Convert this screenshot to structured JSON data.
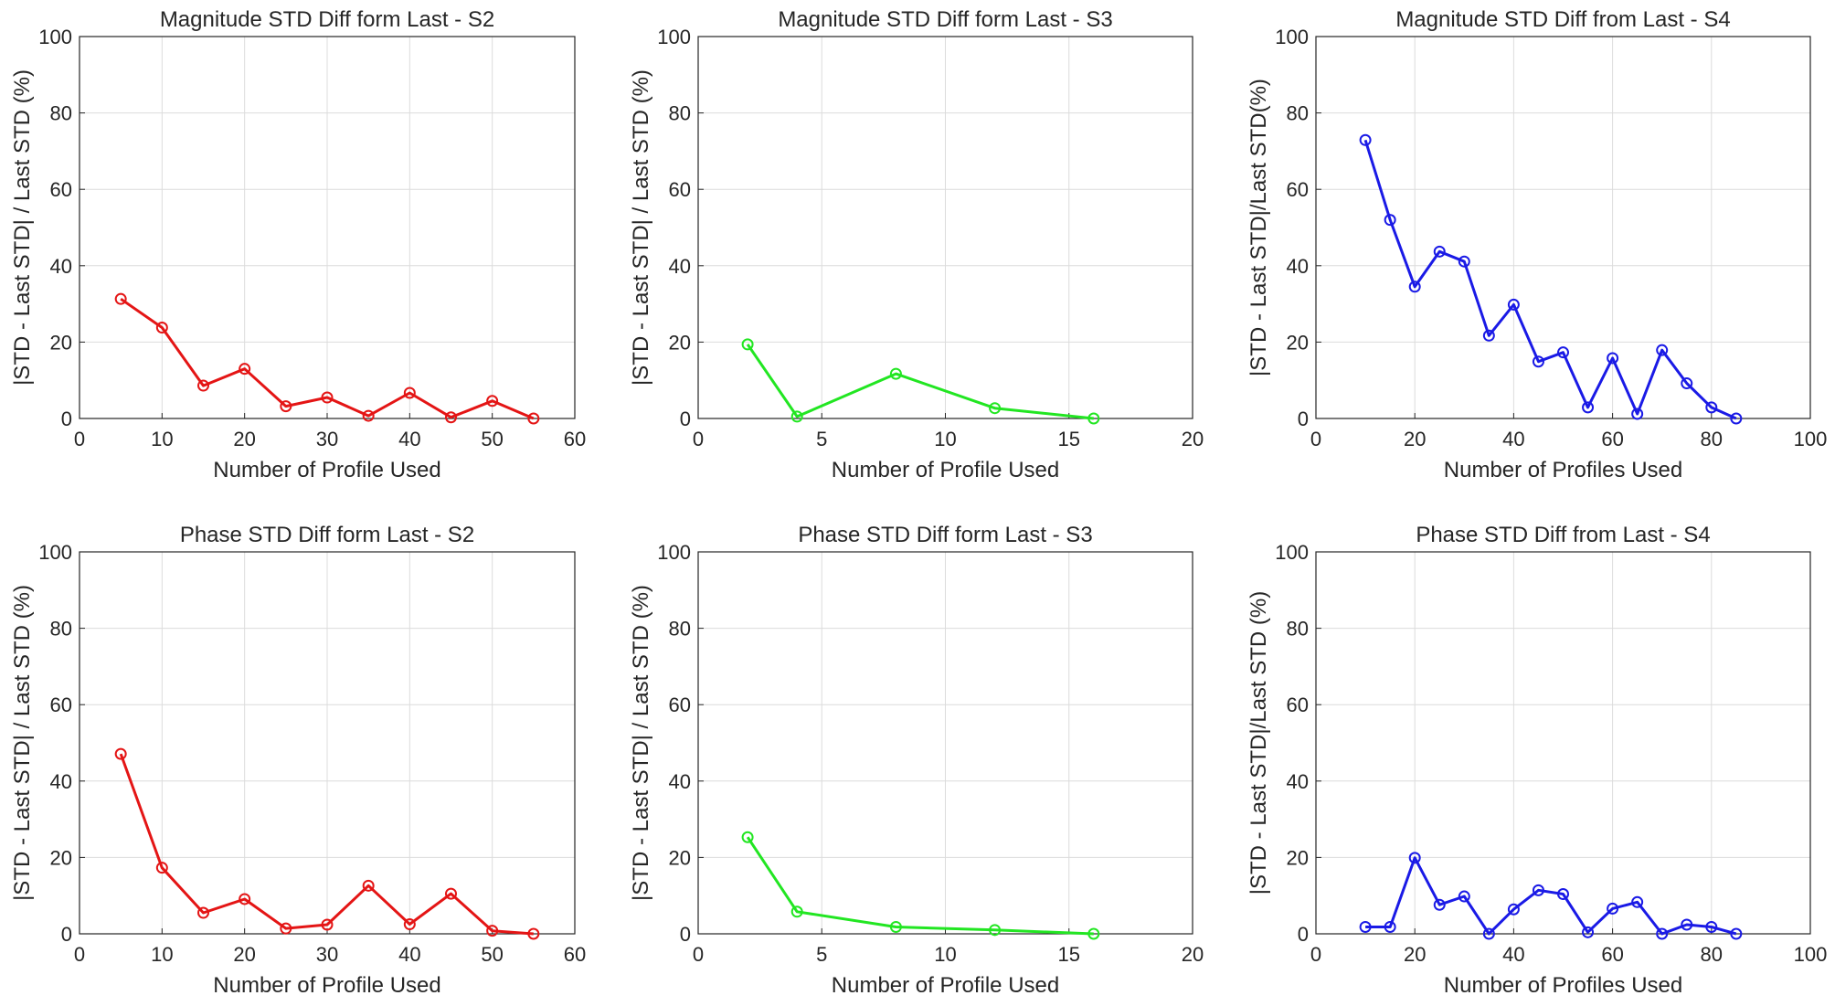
{
  "chart_data": [
    {
      "type": "line",
      "title": "Magnitude STD Diff form Last - S2",
      "xlabel": "Number of Profile Used",
      "ylabel": "|STD - Last STD| / Last STD (%)",
      "xlim": [
        0,
        60
      ],
      "ylim": [
        0,
        100
      ],
      "xticks": [
        0,
        10,
        20,
        30,
        40,
        50,
        60
      ],
      "yticks": [
        0,
        20,
        40,
        60,
        80,
        100
      ],
      "color": "#e41515",
      "marker": "circle",
      "x": [
        5,
        10,
        15,
        20,
        25,
        30,
        35,
        40,
        45,
        50,
        55
      ],
      "y": [
        31.3,
        23.8,
        8.6,
        13.0,
        3.2,
        5.5,
        0.7,
        6.7,
        0.3,
        4.6,
        0.0
      ]
    },
    {
      "type": "line",
      "title": "Magnitude STD Diff form Last - S3",
      "xlabel": "Number of Profile Used",
      "ylabel": "|STD - Last STD| / Last STD (%)",
      "xlim": [
        0,
        20
      ],
      "ylim": [
        0,
        100
      ],
      "xticks": [
        0,
        5,
        10,
        15,
        20
      ],
      "yticks": [
        0,
        20,
        40,
        60,
        80,
        100
      ],
      "color": "#22e622",
      "marker": "circle",
      "x": [
        2,
        4,
        8,
        12,
        16
      ],
      "y": [
        19.4,
        0.5,
        11.7,
        2.7,
        0.0
      ]
    },
    {
      "type": "line",
      "title": "Magnitude STD Diff from Last - S4",
      "xlabel": "Number of Profiles Used",
      "ylabel": "|STD - Last STD|/Last STD(%)",
      "xlim": [
        0,
        100
      ],
      "ylim": [
        0,
        100
      ],
      "xticks": [
        0,
        20,
        40,
        60,
        80,
        100
      ],
      "yticks": [
        0,
        20,
        40,
        60,
        80,
        100
      ],
      "color": "#1a1ae6",
      "marker": "circle",
      "x": [
        10,
        15,
        20,
        25,
        30,
        35,
        40,
        45,
        50,
        55,
        60,
        65,
        70,
        75,
        80,
        85
      ],
      "y": [
        72.9,
        52.0,
        34.5,
        43.7,
        41.1,
        21.7,
        29.8,
        14.9,
        17.3,
        2.9,
        15.8,
        1.2,
        17.9,
        9.2,
        2.9,
        0.0
      ]
    },
    {
      "type": "line",
      "title": "Phase STD Diff form Last - S2",
      "xlabel": "Number of Profile Used",
      "ylabel": "|STD - Last STD| / Last STD (%)",
      "xlim": [
        0,
        60
      ],
      "ylim": [
        0,
        100
      ],
      "xticks": [
        0,
        10,
        20,
        30,
        40,
        50,
        60
      ],
      "yticks": [
        0,
        20,
        40,
        60,
        80,
        100
      ],
      "color": "#e41515",
      "marker": "circle",
      "x": [
        5,
        10,
        15,
        20,
        25,
        30,
        35,
        40,
        45,
        50,
        55
      ],
      "y": [
        47.1,
        17.3,
        5.5,
        9.1,
        1.4,
        2.4,
        12.6,
        2.5,
        10.5,
        0.8,
        0.0
      ]
    },
    {
      "type": "line",
      "title": "Phase STD Diff form Last - S3",
      "xlabel": "Number of Profile Used",
      "ylabel": "|STD - Last STD| / Last STD (%)",
      "xlim": [
        0,
        20
      ],
      "ylim": [
        0,
        100
      ],
      "xticks": [
        0,
        5,
        10,
        15,
        20
      ],
      "yticks": [
        0,
        20,
        40,
        60,
        80,
        100
      ],
      "color": "#22e622",
      "marker": "circle",
      "x": [
        2,
        4,
        8,
        12,
        16
      ],
      "y": [
        25.3,
        5.8,
        1.8,
        1.0,
        0.0
      ]
    },
    {
      "type": "line",
      "title": "Phase STD Diff from Last - S4",
      "xlabel": "Number of Profiles Used",
      "ylabel": "|STD - Last STD|/Last STD (%)",
      "xlim": [
        0,
        100
      ],
      "ylim": [
        0,
        100
      ],
      "xticks": [
        0,
        20,
        40,
        60,
        80,
        100
      ],
      "yticks": [
        0,
        20,
        40,
        60,
        80,
        100
      ],
      "color": "#1a1ae6",
      "marker": "circle",
      "x": [
        10,
        15,
        20,
        25,
        30,
        35,
        40,
        45,
        50,
        55,
        60,
        65,
        70,
        75,
        80,
        85
      ],
      "y": [
        1.8,
        1.8,
        19.9,
        7.6,
        9.8,
        0.0,
        6.4,
        11.4,
        10.4,
        0.4,
        6.6,
        8.3,
        0.0,
        2.4,
        1.8,
        0.0
      ]
    }
  ]
}
